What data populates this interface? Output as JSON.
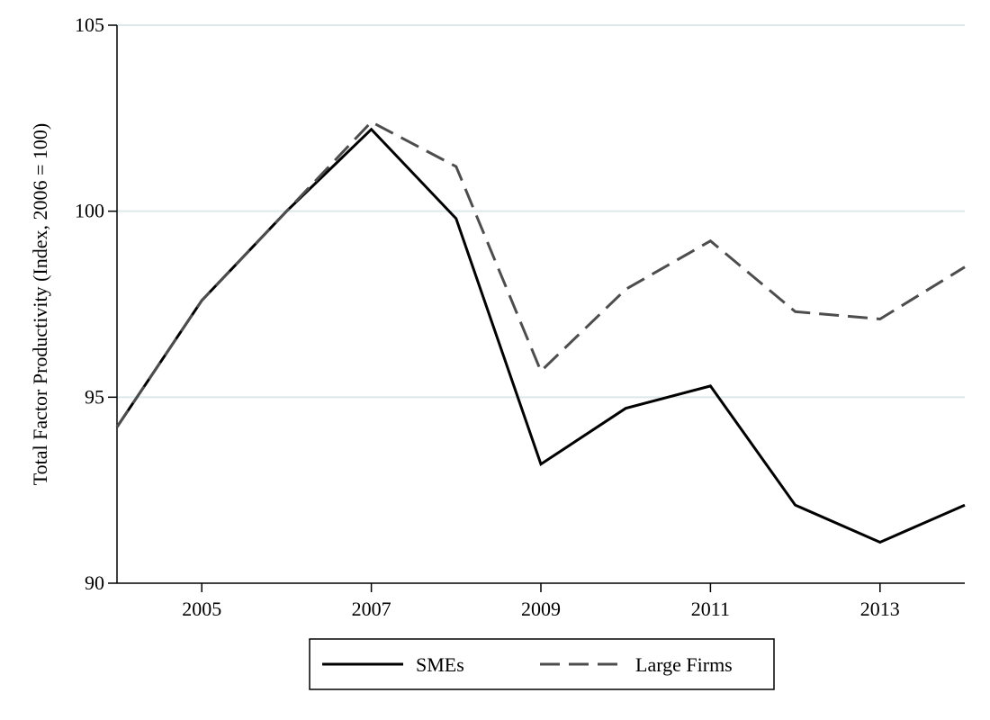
{
  "chart_data": {
    "type": "line",
    "title": "",
    "xlabel": "",
    "ylabel": "Total Factor Productivity (Index, 2006 = 100)",
    "x": [
      2004,
      2005,
      2006,
      2007,
      2008,
      2009,
      2010,
      2011,
      2012,
      2013,
      2014
    ],
    "xlim": [
      2004,
      2014
    ],
    "ylim": [
      90,
      105
    ],
    "xticks": [
      2005,
      2007,
      2009,
      2011,
      2013
    ],
    "yticks": [
      90,
      95,
      100,
      105
    ],
    "grid": "horizontal",
    "legend_position": "bottom",
    "series": [
      {
        "name": "SMEs",
        "style": "solid",
        "color": "#000000",
        "values": [
          94.2,
          97.6,
          100.0,
          102.2,
          99.8,
          93.2,
          94.7,
          95.3,
          92.1,
          91.1,
          92.1
        ]
      },
      {
        "name": "Large Firms",
        "style": "dashed",
        "color": "#4d4d4d",
        "values": [
          94.2,
          97.6,
          100.0,
          102.4,
          101.2,
          95.7,
          97.9,
          99.2,
          97.3,
          97.1,
          98.5
        ]
      }
    ],
    "grid_color": "#dde8e8"
  }
}
